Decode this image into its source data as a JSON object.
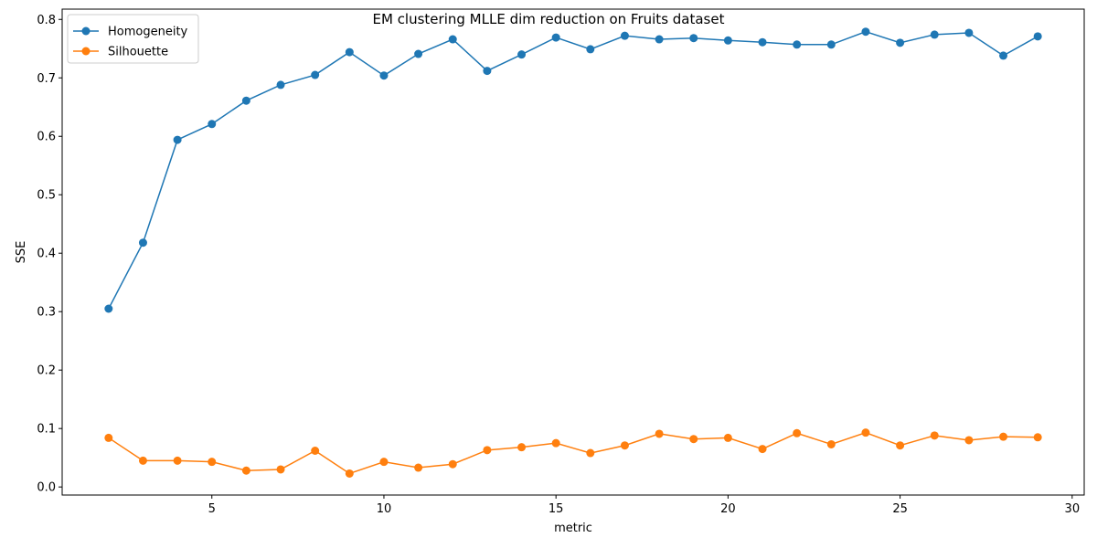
{
  "chart_data": {
    "type": "line",
    "title": "EM clustering MLLE dim reduction on Fruits dataset",
    "xlabel": "metric",
    "ylabel": "SSE",
    "xlim": [
      0.65,
      30.35
    ],
    "ylim": [
      -0.0138,
      0.8176
    ],
    "xticks": [
      5,
      10,
      15,
      20,
      25,
      30
    ],
    "yticks": [
      0.0,
      0.1,
      0.2,
      0.3,
      0.4,
      0.5,
      0.6,
      0.7,
      0.8
    ],
    "xtick_labels": [
      "5",
      "10",
      "15",
      "20",
      "25",
      "30"
    ],
    "ytick_labels": [
      "0.0",
      "0.1",
      "0.2",
      "0.3",
      "0.4",
      "0.5",
      "0.6",
      "0.7",
      "0.8"
    ],
    "grid": false,
    "legend": "top-left",
    "x": [
      2,
      3,
      4,
      5,
      6,
      7,
      8,
      9,
      10,
      11,
      12,
      13,
      14,
      15,
      16,
      17,
      18,
      19,
      20,
      21,
      22,
      23,
      24,
      25,
      26,
      27,
      28,
      29
    ],
    "series": [
      {
        "name": "Homogeneity",
        "color": "#1f77b4",
        "values": [
          0.305,
          0.418,
          0.594,
          0.621,
          0.661,
          0.688,
          0.705,
          0.744,
          0.704,
          0.741,
          0.766,
          0.712,
          0.74,
          0.769,
          0.749,
          0.772,
          0.766,
          0.768,
          0.764,
          0.761,
          0.757,
          0.757,
          0.779,
          0.76,
          0.774,
          0.777,
          0.738,
          0.771
        ]
      },
      {
        "name": "Silhouette",
        "color": "#ff7f0e",
        "values": [
          0.084,
          0.045,
          0.045,
          0.043,
          0.028,
          0.03,
          0.062,
          0.023,
          0.043,
          0.033,
          0.039,
          0.063,
          0.068,
          0.075,
          0.058,
          0.071,
          0.091,
          0.082,
          0.084,
          0.065,
          0.092,
          0.073,
          0.093,
          0.071,
          0.088,
          0.08,
          0.086,
          0.085
        ]
      }
    ]
  }
}
